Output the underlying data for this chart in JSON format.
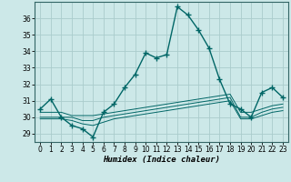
{
  "xlabel": "Humidex (Indice chaleur)",
  "background_color": "#cce8e8",
  "grid_color": "#aacccc",
  "line_color": "#006666",
  "xlim": [
    -0.5,
    23.5
  ],
  "ylim": [
    28.5,
    37.0
  ],
  "yticks": [
    29,
    30,
    31,
    32,
    33,
    34,
    35,
    36
  ],
  "xticks": [
    0,
    1,
    2,
    3,
    4,
    5,
    6,
    7,
    8,
    9,
    10,
    11,
    12,
    13,
    14,
    15,
    16,
    17,
    18,
    19,
    20,
    21,
    22,
    23
  ],
  "line1_x": [
    0,
    1,
    2,
    3,
    4,
    5,
    6,
    7,
    8,
    9,
    10,
    11,
    12,
    13,
    14,
    15,
    16,
    17,
    18,
    19,
    20,
    21,
    22,
    23
  ],
  "line1_y": [
    30.5,
    31.1,
    30.0,
    29.5,
    29.3,
    28.8,
    30.3,
    30.8,
    31.8,
    32.6,
    33.9,
    33.6,
    33.8,
    36.7,
    36.2,
    35.3,
    34.2,
    32.3,
    30.8,
    30.5,
    30.0,
    31.5,
    31.8,
    31.2
  ],
  "line2_x": [
    0,
    1,
    2,
    3,
    4,
    5,
    6,
    7,
    8,
    9,
    10,
    11,
    12,
    13,
    14,
    15,
    16,
    17,
    18,
    19,
    20,
    21,
    22,
    23
  ],
  "line2_y": [
    30.0,
    30.0,
    30.0,
    30.0,
    29.8,
    29.8,
    30.0,
    30.1,
    30.2,
    30.3,
    30.4,
    30.5,
    30.6,
    30.7,
    30.8,
    30.9,
    31.0,
    31.1,
    31.2,
    30.0,
    30.0,
    30.3,
    30.5,
    30.6
  ],
  "line3_x": [
    0,
    1,
    2,
    3,
    4,
    5,
    6,
    7,
    8,
    9,
    10,
    11,
    12,
    13,
    14,
    15,
    16,
    17,
    18,
    19,
    20,
    21,
    22,
    23
  ],
  "line3_y": [
    29.9,
    29.9,
    29.9,
    29.8,
    29.6,
    29.5,
    29.7,
    29.9,
    30.0,
    30.1,
    30.2,
    30.3,
    30.4,
    30.5,
    30.6,
    30.7,
    30.8,
    30.9,
    31.0,
    29.9,
    29.9,
    30.1,
    30.3,
    30.4
  ],
  "line4_x": [
    0,
    1,
    2,
    3,
    4,
    5,
    6,
    7,
    8,
    9,
    10,
    11,
    12,
    13,
    14,
    15,
    16,
    17,
    18,
    19,
    20,
    21,
    22,
    23
  ],
  "line4_y": [
    30.3,
    30.3,
    30.3,
    30.1,
    30.1,
    30.1,
    30.2,
    30.3,
    30.4,
    30.5,
    30.6,
    30.7,
    30.8,
    30.9,
    31.0,
    31.1,
    31.2,
    31.3,
    31.4,
    30.3,
    30.3,
    30.5,
    30.7,
    30.8
  ]
}
